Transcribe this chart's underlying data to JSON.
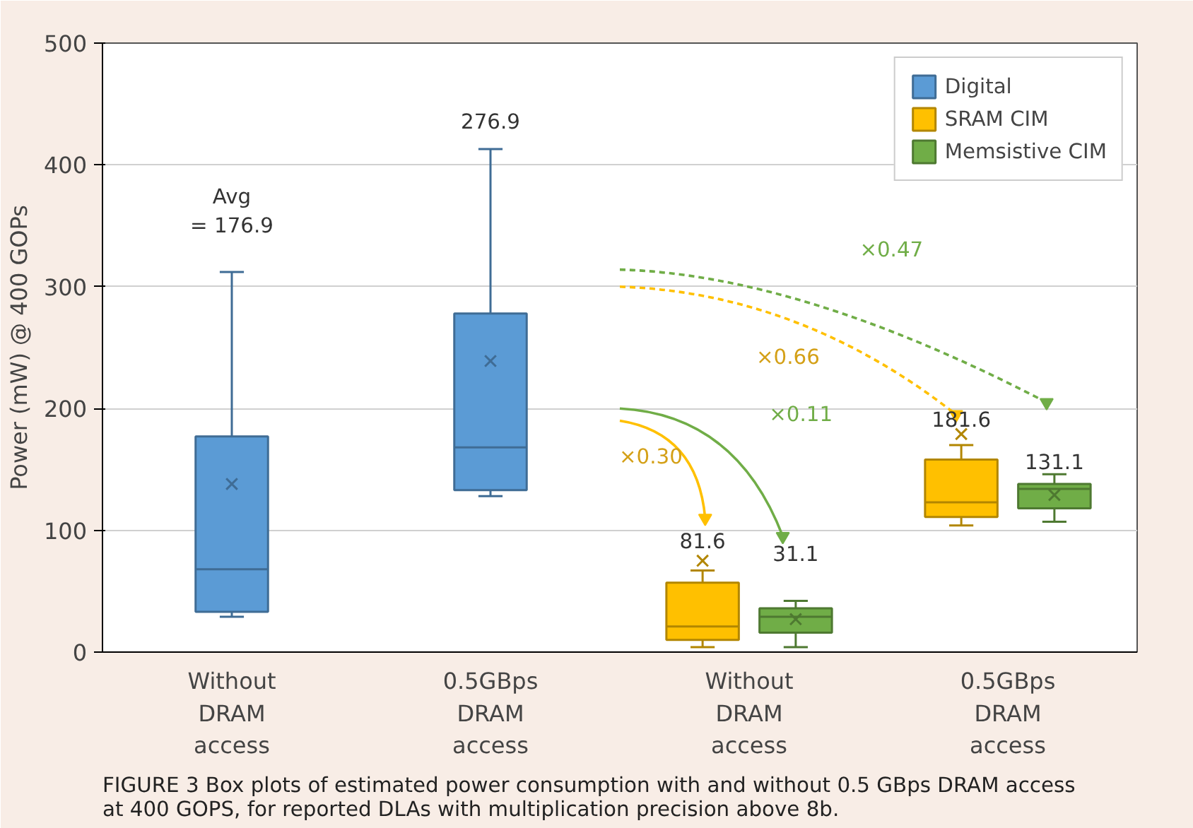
{
  "chart_data": {
    "type": "box",
    "ylabel": "Power (mW) @ 400 GOPs",
    "categories": [
      "Without\nDRAM\naccess",
      "0.5GBps\nDRAM\naccess",
      "Without\nDRAM\naccess",
      "0.5GBps\nDRAM\naccess"
    ],
    "ylim": [
      0,
      500
    ],
    "yticks": [
      0,
      100,
      200,
      300,
      400,
      500
    ],
    "grid": "y",
    "legend": "top right",
    "series": [
      {
        "name": "Digital",
        "color": "#5b9bd5",
        "boxes": [
          {
            "low": 29,
            "q1": 33,
            "median": 68,
            "q3": 177,
            "high": 312,
            "mean": 138
          },
          {
            "low": 128,
            "q1": 133,
            "median": 168,
            "q3": 278,
            "high": 413,
            "mean": 239
          },
          null,
          null
        ]
      },
      {
        "name": "SRAM CIM",
        "color": "#ffc000",
        "boxes": [
          null,
          null,
          {
            "low": 4,
            "q1": 10,
            "median": 21,
            "q3": 57,
            "high": 67,
            "mean": 75
          },
          {
            "low": 104,
            "q1": 111,
            "median": 123,
            "q3": 158,
            "high": 170,
            "mean": 179
          }
        ]
      },
      {
        "name": "Memsistive CIM",
        "color": "#70ad47",
        "boxes": [
          null,
          null,
          {
            "low": 4,
            "q1": 16,
            "median": 29,
            "q3": 36,
            "high": 42,
            "mean": 27
          },
          {
            "low": 107,
            "q1": 118,
            "median": 134,
            "q3": 138,
            "high": 146,
            "mean": 129
          }
        ]
      }
    ],
    "annotations": [
      "Avg\n= 176.9",
      "276.9",
      "81.6",
      "31.1",
      "181.6",
      "131.1",
      "×0.47",
      "×0.66",
      "×0.11",
      "×0.30",
      "FIGURE 3  Box plots of estimated power consumption with and without 0.5 GBps DRAM access\nat 400 GOPS, for reported DLAs with multiplication precision above 8b."
    ]
  }
}
